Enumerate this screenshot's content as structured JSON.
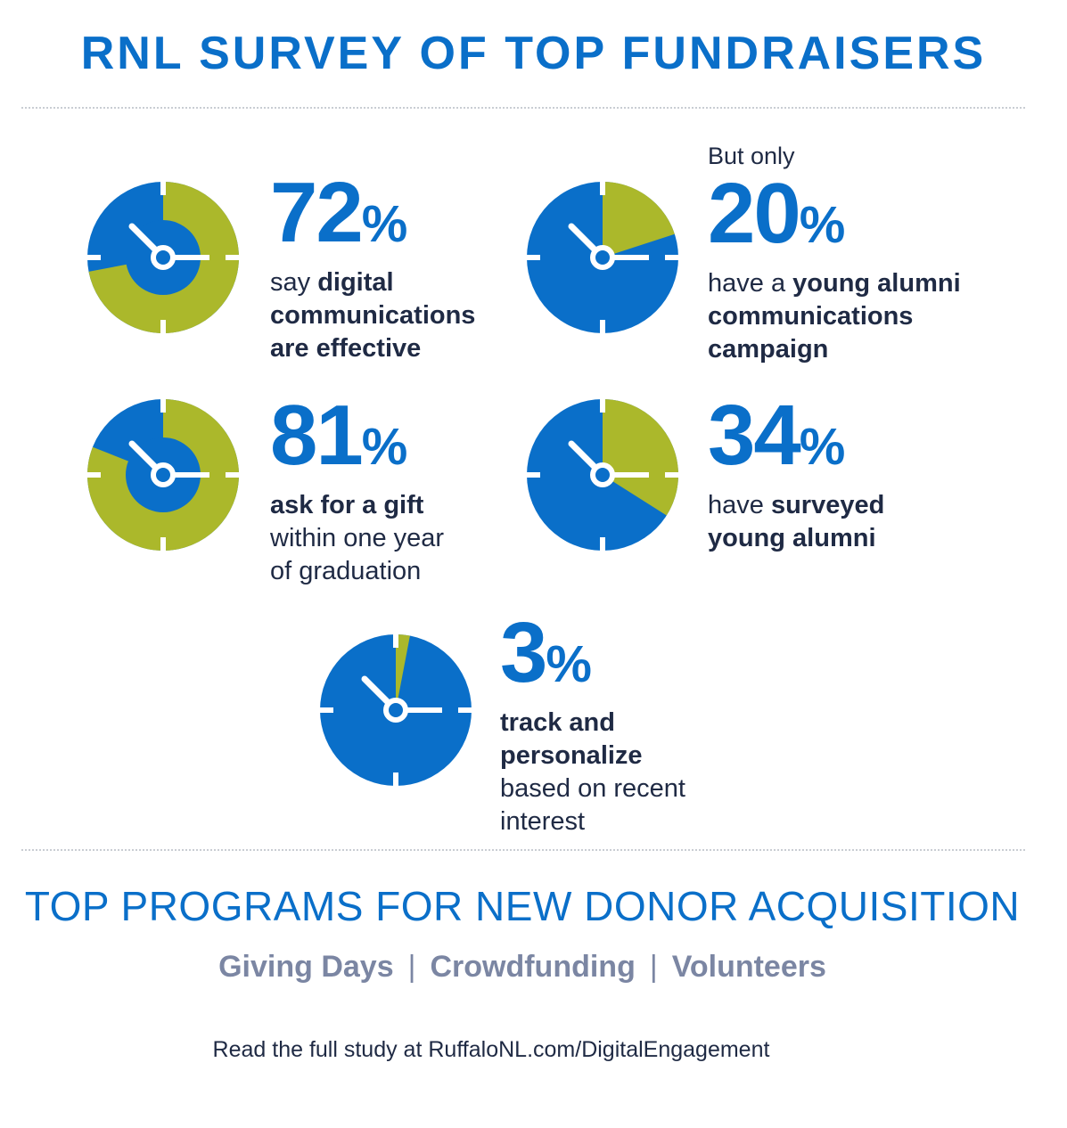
{
  "title": "RNL SURVEY OF TOP FUNDRAISERS",
  "colors": {
    "accent": "#0a6fc9",
    "highlight": "#abb82b",
    "dark_text": "#1f2a44",
    "muted": "#7b86a3"
  },
  "chart_data": [
    {
      "type": "pie",
      "value": 72,
      "unit": "%",
      "pre": "",
      "lines": [
        [
          {
            "t": "say ",
            "b": false
          },
          {
            "t": "digital",
            "b": true
          }
        ],
        [
          {
            "t": "communications",
            "b": true
          }
        ],
        [
          {
            "t": "are effective",
            "b": true
          }
        ]
      ]
    },
    {
      "type": "pie",
      "value": 20,
      "unit": "%",
      "pre": "But only",
      "lines": [
        [
          {
            "t": "have a ",
            "b": false
          },
          {
            "t": "young alumni",
            "b": true
          }
        ],
        [
          {
            "t": "communications",
            "b": true
          }
        ],
        [
          {
            "t": "campaign",
            "b": true
          }
        ]
      ]
    },
    {
      "type": "pie",
      "value": 81,
      "unit": "%",
      "pre": "",
      "lines": [
        [
          {
            "t": "ask for a gift",
            "b": true
          }
        ],
        [
          {
            "t": "within one year",
            "b": false
          }
        ],
        [
          {
            "t": "of graduation",
            "b": false
          }
        ]
      ]
    },
    {
      "type": "pie",
      "value": 34,
      "unit": "%",
      "pre": "",
      "lines": [
        [
          {
            "t": "have ",
            "b": false
          },
          {
            "t": "surveyed",
            "b": true
          }
        ],
        [
          {
            "t": "young alumni",
            "b": true
          }
        ]
      ]
    },
    {
      "type": "pie",
      "value": 3,
      "unit": "%",
      "pre": "",
      "lines": [
        [
          {
            "t": "track and",
            "b": true
          }
        ],
        [
          {
            "t": "personalize",
            "b": true
          }
        ],
        [
          {
            "t": "based on recent",
            "b": false
          }
        ],
        [
          {
            "t": "interest",
            "b": false
          }
        ]
      ]
    }
  ],
  "section2": {
    "heading": "TOP PROGRAMS FOR NEW DONOR ACQUISITION",
    "programs": [
      "Giving Days",
      "Crowdfunding",
      "Volunteers"
    ],
    "separator": "|"
  },
  "footer": "Read the full study at RuffaloNL.com/DigitalEngagement"
}
